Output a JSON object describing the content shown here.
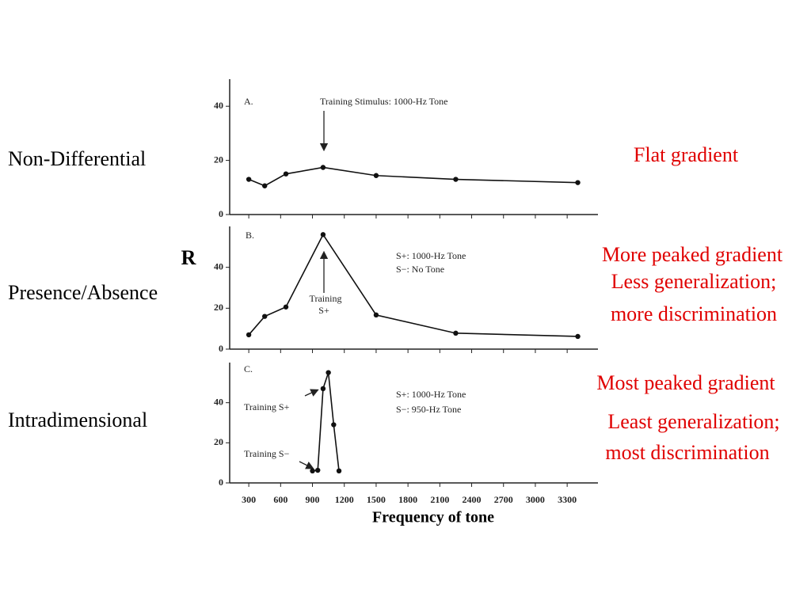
{
  "slide": {
    "left_labels": [
      "Non-Differential",
      "Presence/Absence",
      "Intradimensional"
    ],
    "right_labels": [
      "Flat gradient",
      "More peaked gradient",
      "Less generalization;",
      "more discrimination",
      "Most peaked gradient",
      "Least generalization;",
      "most discrimination"
    ]
  },
  "chart_data": [
    {
      "type": "line",
      "annotations": [
        "A.",
        "Training Stimulus: 1000-Hz Tone"
      ],
      "x": [
        300,
        450,
        650,
        1000,
        1500,
        2250,
        3400
      ],
      "series": [
        {
          "color": "#111111",
          "values": [
            13,
            10.6,
            15,
            17.4,
            14.4,
            13,
            11.8
          ]
        }
      ],
      "xlim": [
        120,
        3590
      ],
      "ylim": [
        0,
        50
      ],
      "yticks": [
        0,
        20,
        40
      ]
    },
    {
      "type": "line",
      "ylabel": "R",
      "annotations": [
        "B.",
        "S+: 1000-Hz Tone",
        "S−: No Tone",
        "Training",
        "S+"
      ],
      "x": [
        300,
        450,
        650,
        1000,
        1500,
        2250,
        3400
      ],
      "series": [
        {
          "color": "#111111",
          "values": [
            7,
            16,
            20.6,
            56,
            16.7,
            7.8,
            6.2
          ]
        }
      ],
      "xlim": [
        120,
        3590
      ],
      "ylim": [
        0,
        60
      ],
      "yticks": [
        0,
        20,
        40
      ]
    },
    {
      "type": "line",
      "xlabel": "Frequency of tone",
      "annotations": [
        "C.",
        "S+: 1000-Hz Tone",
        "S−: 950-Hz Tone",
        "Training S+",
        "Training S−"
      ],
      "x": [
        900,
        950,
        1000,
        1050,
        1100,
        1150
      ],
      "series": [
        {
          "color": "#111111",
          "values": [
            6,
            6.3,
            47,
            55,
            29,
            6
          ]
        }
      ],
      "xlim": [
        120,
        3590
      ],
      "ylim": [
        0,
        60
      ],
      "yticks": [
        0,
        20,
        40
      ],
      "xticks": [
        300,
        600,
        900,
        1200,
        1500,
        1800,
        2100,
        2400,
        2700,
        3000,
        3300
      ]
    }
  ]
}
